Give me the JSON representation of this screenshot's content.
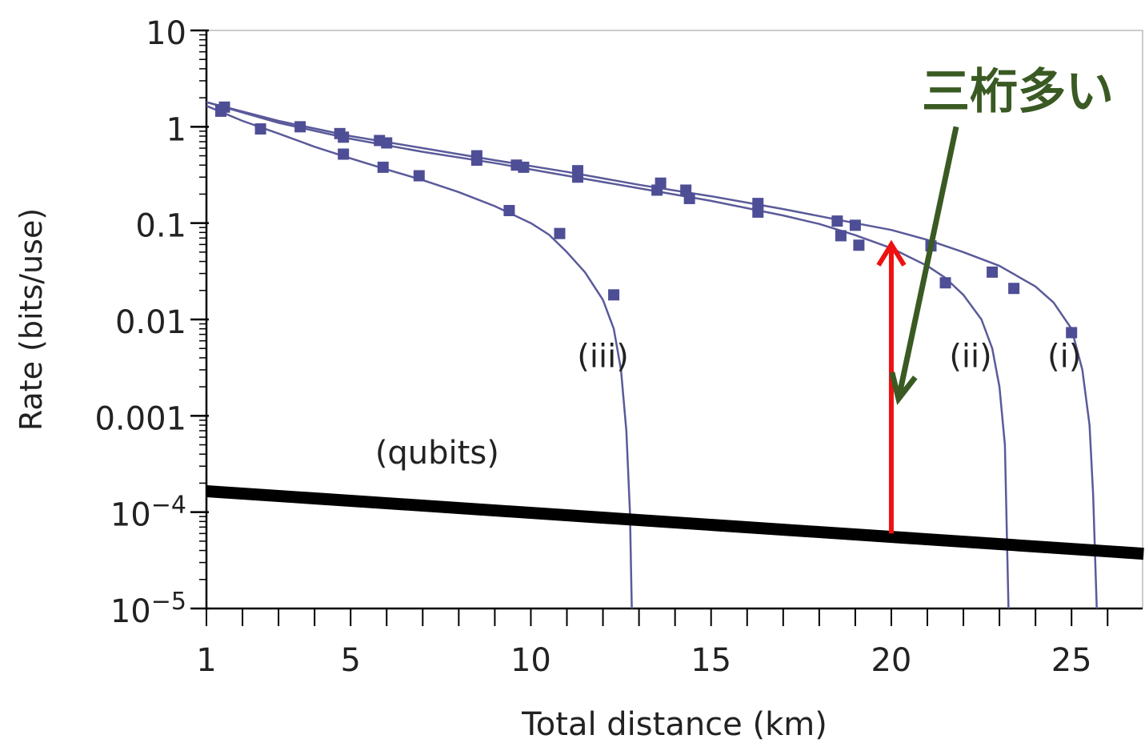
{
  "chart_data": {
    "type": "line",
    "xlabel": "Total distance (km)",
    "ylabel": "Rate (bits/use)",
    "x_scale": "linear",
    "y_scale": "log",
    "xlim": [
      1,
      27
    ],
    "ylim": [
      1e-05,
      10
    ],
    "grid": false,
    "legend": "none",
    "x_ticks": [
      1,
      5,
      10,
      15,
      20,
      25
    ],
    "x_tick_labels": [
      "1",
      "5",
      "10",
      "15",
      "20",
      "25"
    ],
    "y_ticks": [
      10,
      1,
      0.1,
      0.01,
      0.001,
      0.0001,
      1e-05
    ],
    "y_tick_labels": [
      {
        "base": "10",
        "sup": ""
      },
      {
        "base": "1",
        "sup": ""
      },
      {
        "base": "0.1",
        "sup": ""
      },
      {
        "base": "0.01",
        "sup": ""
      },
      {
        "base": "0.001",
        "sup": ""
      },
      {
        "base": "10",
        "sup": "−4"
      },
      {
        "base": "10",
        "sup": "−5"
      }
    ],
    "series": [
      {
        "name": "(i)",
        "color": "#5a5a9a",
        "curve": [
          [
            1,
            1.8
          ],
          [
            3,
            1.15
          ],
          [
            5,
            0.8
          ],
          [
            7,
            0.6
          ],
          [
            9,
            0.45
          ],
          [
            11,
            0.34
          ],
          [
            13,
            0.25
          ],
          [
            15,
            0.19
          ],
          [
            17,
            0.14
          ],
          [
            19,
            0.1
          ],
          [
            20,
            0.085
          ],
          [
            21,
            0.067
          ],
          [
            22,
            0.05
          ],
          [
            23,
            0.036
          ],
          [
            24,
            0.022
          ],
          [
            24.5,
            0.015
          ],
          [
            25,
            0.008
          ],
          [
            25.3,
            0.003
          ],
          [
            25.5,
            0.0008
          ],
          [
            25.6,
            0.00015
          ],
          [
            25.7,
            1e-05
          ]
        ],
        "points": [
          [
            1.5,
            1.6
          ],
          [
            3.6,
            1.0
          ],
          [
            4.7,
            0.85
          ],
          [
            5.8,
            0.72
          ],
          [
            8.5,
            0.5
          ],
          [
            9.6,
            0.4
          ],
          [
            11.3,
            0.35
          ],
          [
            13.6,
            0.26
          ],
          [
            14.3,
            0.22
          ],
          [
            16.3,
            0.16
          ],
          [
            18.5,
            0.105
          ],
          [
            19,
            0.095
          ],
          [
            21.1,
            0.058
          ],
          [
            22.8,
            0.031
          ],
          [
            23.4,
            0.021
          ],
          [
            25,
            0.0073
          ]
        ]
      },
      {
        "name": "(ii)",
        "color": "#5a5a9a",
        "curve": [
          [
            1,
            1.8
          ],
          [
            3,
            1.1
          ],
          [
            5,
            0.75
          ],
          [
            7,
            0.55
          ],
          [
            9,
            0.42
          ],
          [
            11,
            0.31
          ],
          [
            13,
            0.23
          ],
          [
            15,
            0.17
          ],
          [
            17,
            0.12
          ],
          [
            18,
            0.098
          ],
          [
            19,
            0.075
          ],
          [
            20,
            0.055
          ],
          [
            21,
            0.036
          ],
          [
            21.5,
            0.027
          ],
          [
            22,
            0.018
          ],
          [
            22.5,
            0.01
          ],
          [
            22.8,
            0.005
          ],
          [
            23,
            0.002
          ],
          [
            23.15,
            0.0005
          ],
          [
            23.25,
            1e-05
          ]
        ],
        "points": [
          [
            1.4,
            1.45
          ],
          [
            4.8,
            0.78
          ],
          [
            6,
            0.68
          ],
          [
            8.5,
            0.45
          ],
          [
            9.8,
            0.38
          ],
          [
            11.3,
            0.3
          ],
          [
            13.5,
            0.22
          ],
          [
            14.4,
            0.18
          ],
          [
            16.3,
            0.13
          ],
          [
            18.6,
            0.074
          ],
          [
            19.1,
            0.059
          ],
          [
            21.5,
            0.024
          ]
        ]
      },
      {
        "name": "(iii)",
        "color": "#5a5a9a",
        "curve": [
          [
            1,
            1.65
          ],
          [
            2,
            1.15
          ],
          [
            3,
            0.85
          ],
          [
            4,
            0.62
          ],
          [
            5,
            0.47
          ],
          [
            6,
            0.36
          ],
          [
            7,
            0.28
          ],
          [
            8,
            0.21
          ],
          [
            9,
            0.15
          ],
          [
            10,
            0.1
          ],
          [
            10.5,
            0.076
          ],
          [
            11,
            0.05
          ],
          [
            11.5,
            0.031
          ],
          [
            12,
            0.016
          ],
          [
            12.3,
            0.008
          ],
          [
            12.5,
            0.003
          ],
          [
            12.65,
            0.0007
          ],
          [
            12.75,
            0.0001
          ],
          [
            12.8,
            1e-05
          ]
        ],
        "points": [
          [
            1.4,
            1.5
          ],
          [
            2.5,
            0.95
          ],
          [
            4.8,
            0.52
          ],
          [
            5.9,
            0.38
          ],
          [
            6.9,
            0.31
          ],
          [
            9.4,
            0.135
          ],
          [
            10.8,
            0.078
          ],
          [
            12.3,
            0.018
          ]
        ]
      },
      {
        "name": "(qubits)",
        "color": "#000000",
        "curve": [
          [
            1,
            0.000165
          ],
          [
            27,
            3.7e-05
          ]
        ]
      }
    ],
    "annotations": {
      "label_i": "(i)",
      "label_ii": "(ii)",
      "label_iii": "(iii)",
      "label_qubits": "(qubits)",
      "japanese_note": "三桁多い",
      "note_color": "#3a5a23",
      "red_arrow_color": "#ee1111",
      "red_arrow": {
        "x": 20,
        "y_from": 6e-05,
        "y_to": 0.06
      },
      "green_arrow": {
        "x_from": 21.8,
        "y_from": 1.0,
        "x_to": 20.2,
        "y_to": 0.0015
      }
    }
  }
}
